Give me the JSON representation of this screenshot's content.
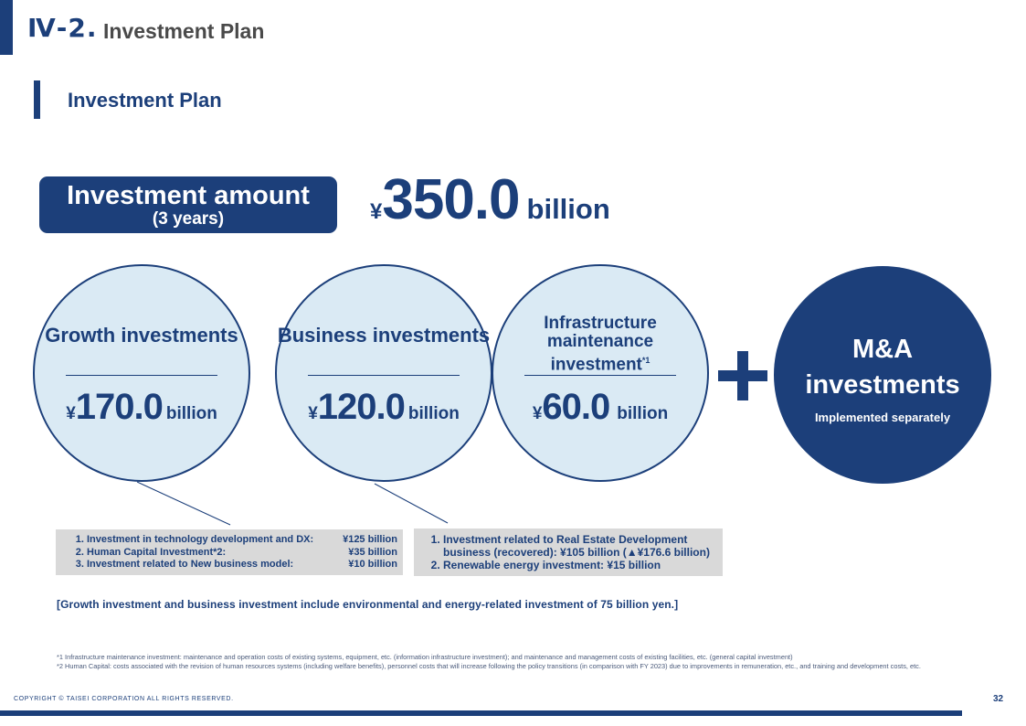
{
  "header": {
    "section_number": "Ⅳ-2.",
    "section_title": "Investment Plan"
  },
  "subheader": {
    "title": "Investment Plan"
  },
  "total": {
    "label": "Investment amount",
    "period": "(3 years)",
    "currency": "¥",
    "value": "350.0",
    "unit": "billion"
  },
  "circles": [
    {
      "title": "Growth investments",
      "currency": "¥",
      "value": "170.0",
      "unit": "billion"
    },
    {
      "title": "Business investments",
      "currency": "¥",
      "value": "120.0",
      "unit": "billion"
    },
    {
      "title_line1": "Infrastructure",
      "title_line2": "maintenance",
      "title_line3": "investment",
      "title_sup": "*1",
      "currency": "¥",
      "value": "60.0",
      "unit": "billion"
    }
  ],
  "ma": {
    "title_line1": "M&A",
    "title_line2": "investments",
    "note": "Implemented separately"
  },
  "growth_breakdown": [
    {
      "label": "Investment in technology development and DX:",
      "value": "¥125 billion"
    },
    {
      "label": "Human Capital Investment*2:",
      "value": "¥35 billion"
    },
    {
      "label": "Investment related to New business model:",
      "value": "¥10 billion"
    }
  ],
  "business_breakdown": [
    {
      "line1": "Investment related to Real Estate Development",
      "line2": "business (recovered): ¥105 billion  (▲¥176.6 billion)"
    },
    {
      "line1": "Renewable energy investment: ¥15 billion"
    }
  ],
  "env_note": "[Growth investment and business investment include environmental and energy-related investment of 75 billion  yen.]",
  "footnotes": {
    "note1": "*1 Infrastructure maintenance investment: maintenance and operation costs of existing systems, equipment, etc. (information infrastructure investment); and maintenance  and management  costs of existing facilities, etc. (general capital investment)",
    "note2": "*2 Human Capital: costs associated  with the revision of human resources systems (including welfare benefits),  personnel costs that will increase following the policy transitions (in comparison with FY 2023)  due to improvements in remuneration,  etc., and training and development  costs, etc."
  },
  "footer": {
    "copyright": "COPYRIGHT © TAISEI CORPORATION ALL RIGHTS RESERVED.",
    "page": "32"
  },
  "colors": {
    "navy": "#1c3f7a",
    "circle_fill": "#daeaf4",
    "box_gray": "#d9d9d9"
  }
}
